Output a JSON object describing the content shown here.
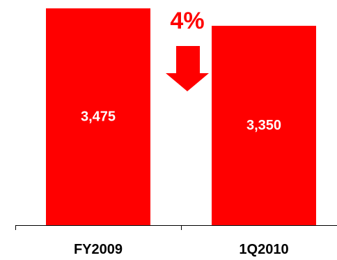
{
  "chart_data": {
    "type": "bar",
    "categories": [
      "FY2009",
      "1Q2010"
    ],
    "values": [
      3475,
      3350
    ],
    "value_labels": [
      "3,475",
      "3,350"
    ],
    "ylim": [
      1920,
      3500
    ],
    "grid": false,
    "legend": "none",
    "annotations": [
      {
        "text": "4%"
      }
    ],
    "bar_color": "#FF0000",
    "annotation_color": "#FF0000"
  },
  "icons": {
    "change_arrow": "down-arrow-icon"
  }
}
